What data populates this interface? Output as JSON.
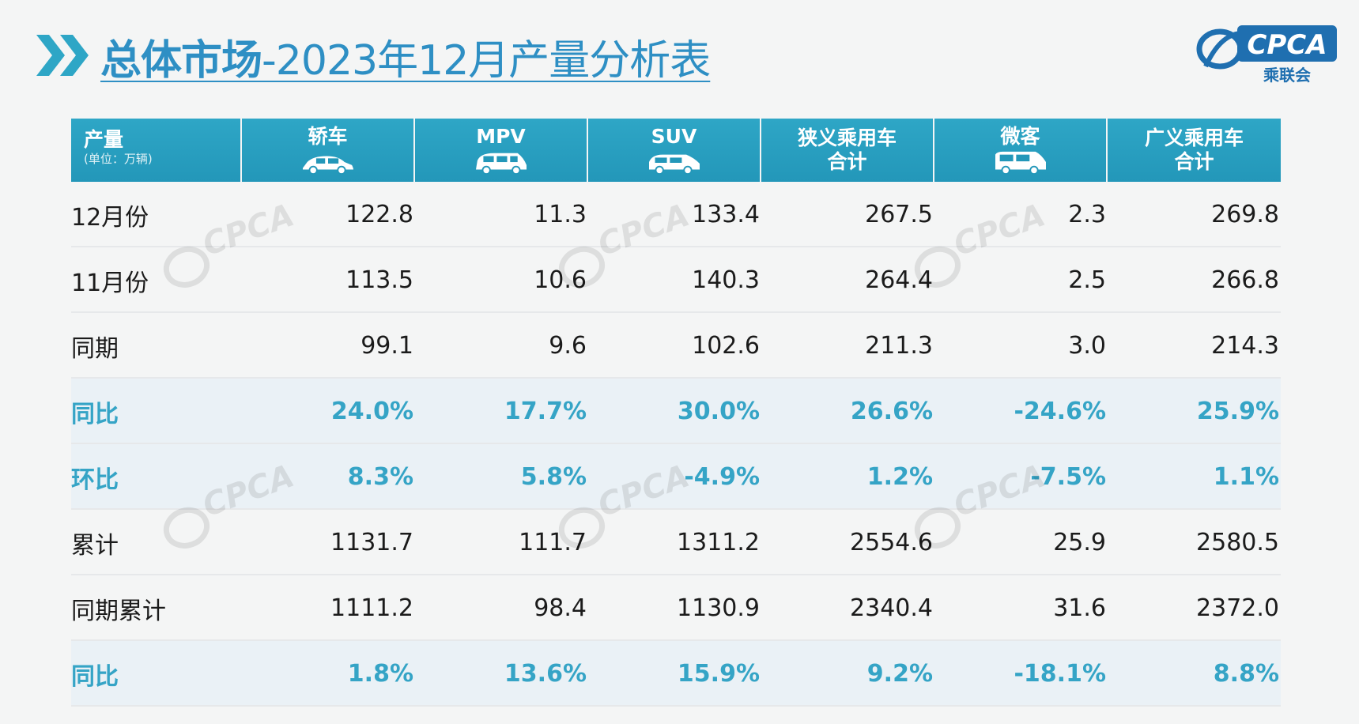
{
  "title": {
    "bold": "总体市场",
    "rest": "-2023年12月产量分析表"
  },
  "logo": {
    "text": "CPCA",
    "subtext": "乘联会"
  },
  "watermark_text": "CPCA",
  "table": {
    "header": {
      "label": "产量",
      "unit": "(单位：万辆)",
      "columns": [
        {
          "lines": [
            "轿车"
          ],
          "icon": "sedan-icon"
        },
        {
          "lines": [
            "MPV"
          ],
          "icon": "mpv-icon"
        },
        {
          "lines": [
            "SUV"
          ],
          "icon": "suv-icon"
        },
        {
          "lines": [
            "狭义乘用车",
            "合计"
          ],
          "icon": null
        },
        {
          "lines": [
            "微客"
          ],
          "icon": "microvan-icon"
        },
        {
          "lines": [
            "广义乘用车",
            "合计"
          ],
          "icon": null
        }
      ]
    },
    "rows": [
      {
        "label": "12月份",
        "values": [
          "122.8",
          "11.3",
          "133.4",
          "267.5",
          "2.3",
          "269.8"
        ],
        "type": "value"
      },
      {
        "label": "11月份",
        "values": [
          "113.5",
          "10.6",
          "140.3",
          "264.4",
          "2.5",
          "266.8"
        ],
        "type": "value"
      },
      {
        "label": "同期",
        "values": [
          "99.1",
          "9.6",
          "102.6",
          "211.3",
          "3.0",
          "214.3"
        ],
        "type": "value"
      },
      {
        "label": "同比",
        "values": [
          "24.0%",
          "17.7%",
          "30.0%",
          "26.6%",
          "-24.6%",
          "25.9%"
        ],
        "type": "pct"
      },
      {
        "label": "环比",
        "values": [
          "8.3%",
          "5.8%",
          "-4.9%",
          "1.2%",
          "-7.5%",
          "1.1%"
        ],
        "type": "pct"
      },
      {
        "label": "累计",
        "values": [
          "1131.7",
          "111.7",
          "1311.2",
          "2554.6",
          "25.9",
          "2580.5"
        ],
        "type": "value"
      },
      {
        "label": "同期累计",
        "values": [
          "1111.2",
          "98.4",
          "1130.9",
          "2340.4",
          "31.6",
          "2372.0"
        ],
        "type": "value"
      },
      {
        "label": "同比",
        "values": [
          "1.8%",
          "13.6%",
          "15.9%",
          "9.2%",
          "-18.1%",
          "8.8%"
        ],
        "type": "pct"
      }
    ]
  },
  "colors": {
    "accent": "#2e8fc4",
    "header_bg": "#2ea6c6",
    "pct_text": "#35a4c6"
  }
}
